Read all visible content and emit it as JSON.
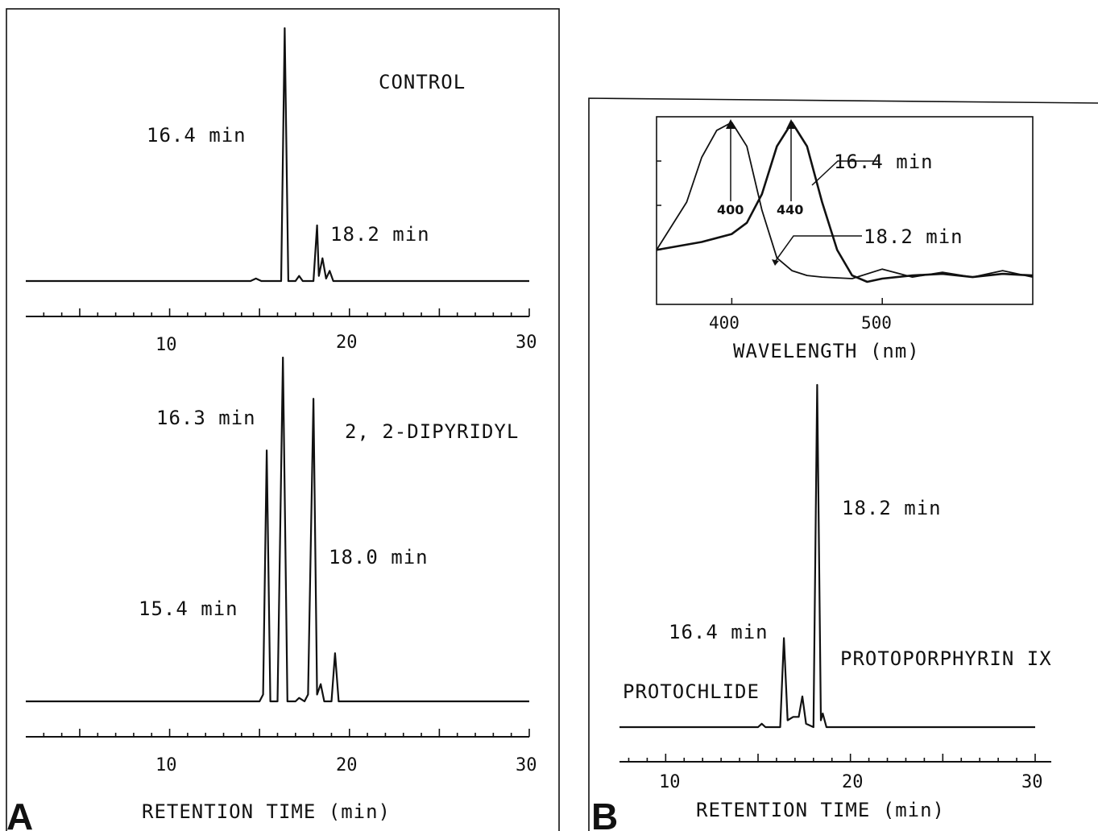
{
  "panels": {
    "A": {
      "letter": "A",
      "xlabel": "RETENTION TIME  (min)",
      "control": {
        "title": "CONTROL",
        "ticks": [
          "10",
          "20",
          "30"
        ],
        "peaks": [
          {
            "label": "16.4 min"
          },
          {
            "label": "18.2 min"
          }
        ]
      },
      "dipyridyl": {
        "title": "2, 2-DIPYRIDYL",
        "ticks": [
          "10",
          "20",
          "30"
        ],
        "peaks": [
          {
            "label": "15.4 min"
          },
          {
            "label": "16.3 min"
          },
          {
            "label": "18.0 min"
          }
        ]
      }
    },
    "B": {
      "letter": "B",
      "xlabel": "RETENTION TIME  (min)",
      "ticks": [
        "10",
        "20",
        "30"
      ],
      "peaks": [
        {
          "label": "16.4 min",
          "compound": "PROTOCHLIDE"
        },
        {
          "label": "18.2 min",
          "compound": "PROTOPORPHYRIN IX"
        }
      ],
      "inset": {
        "xlabel": "WAVELENGTH  (nm)",
        "ticks": [
          "400",
          "500"
        ],
        "markers": [
          "400",
          "440"
        ],
        "legend": [
          "16.4 min",
          "18.2 min"
        ]
      }
    }
  },
  "chart_data": [
    {
      "type": "line",
      "panel": "A",
      "subtitle": "CONTROL",
      "xlabel": "RETENTION TIME  (min)",
      "xlim": [
        2,
        30
      ],
      "series": [
        {
          "values_unit": "relative absorbance",
          "x": [
            2,
            14.5,
            14.8,
            15.1,
            16.2,
            16.4,
            16.6,
            17.0,
            17.2,
            17.4,
            18.0,
            18.2,
            18.3,
            18.5,
            18.7,
            18.9,
            19.1,
            19.4,
            30
          ],
          "y": [
            0.0,
            0.0,
            0.01,
            0.0,
            0.0,
            1.0,
            0.0,
            0.0,
            0.02,
            0.0,
            0.0,
            0.22,
            0.02,
            0.09,
            0.01,
            0.04,
            0.0,
            0.0,
            0.0
          ]
        }
      ]
    },
    {
      "type": "line",
      "panel": "A",
      "subtitle": "2, 2-DIPYRIDYL",
      "xlabel": "RETENTION TIME  (min)",
      "xlim": [
        2,
        30
      ],
      "series": [
        {
          "values_unit": "relative absorbance",
          "x": [
            2,
            15.0,
            15.2,
            15.4,
            15.6,
            16.0,
            16.3,
            16.55,
            17.0,
            17.2,
            17.5,
            17.7,
            18.0,
            18.2,
            18.4,
            18.6,
            19.0,
            19.2,
            19.4,
            30
          ],
          "y": [
            0.0,
            0.0,
            0.02,
            0.73,
            0.0,
            0.0,
            1.0,
            0.0,
            0.0,
            0.01,
            0.0,
            0.02,
            0.88,
            0.02,
            0.05,
            0.0,
            0.0,
            0.14,
            0.0,
            0.0
          ]
        }
      ]
    },
    {
      "type": "line",
      "panel": "B",
      "xlabel": "RETENTION TIME  (min)",
      "xlim": [
        7.5,
        30
      ],
      "series": [
        {
          "values_unit": "relative absorbance",
          "x": [
            7.5,
            15.0,
            15.2,
            15.4,
            16.2,
            16.4,
            16.6,
            16.9,
            17.2,
            17.4,
            17.6,
            18.0,
            18.2,
            18.4,
            18.5,
            18.7,
            30
          ],
          "y": [
            0.0,
            0.0,
            0.01,
            0.0,
            0.0,
            0.26,
            0.02,
            0.03,
            0.03,
            0.09,
            0.01,
            0.0,
            1.0,
            0.02,
            0.04,
            0.0,
            0.0
          ]
        }
      ]
    },
    {
      "type": "line",
      "panel": "B-inset",
      "xlabel": "WAVELENGTH  (nm)",
      "xlim": [
        350,
        600
      ],
      "series": [
        {
          "name": "16.4 min",
          "x": [
            350,
            380,
            400,
            410,
            420,
            430,
            440,
            450,
            460,
            470,
            480,
            490,
            500,
            520,
            540,
            560,
            580,
            600
          ],
          "y": [
            0.2,
            0.25,
            0.3,
            0.37,
            0.55,
            0.85,
            1.0,
            0.85,
            0.5,
            0.2,
            0.04,
            0.0,
            0.02,
            0.04,
            0.05,
            0.03,
            0.05,
            0.04
          ]
        },
        {
          "name": "18.2 min",
          "x": [
            350,
            370,
            380,
            390,
            400,
            410,
            420,
            430,
            440,
            450,
            460,
            480,
            500,
            520,
            540,
            560,
            580,
            600
          ],
          "y": [
            0.2,
            0.5,
            0.78,
            0.95,
            1.0,
            0.85,
            0.45,
            0.15,
            0.07,
            0.04,
            0.03,
            0.02,
            0.08,
            0.03,
            0.06,
            0.03,
            0.07,
            0.03
          ]
        }
      ]
    }
  ]
}
